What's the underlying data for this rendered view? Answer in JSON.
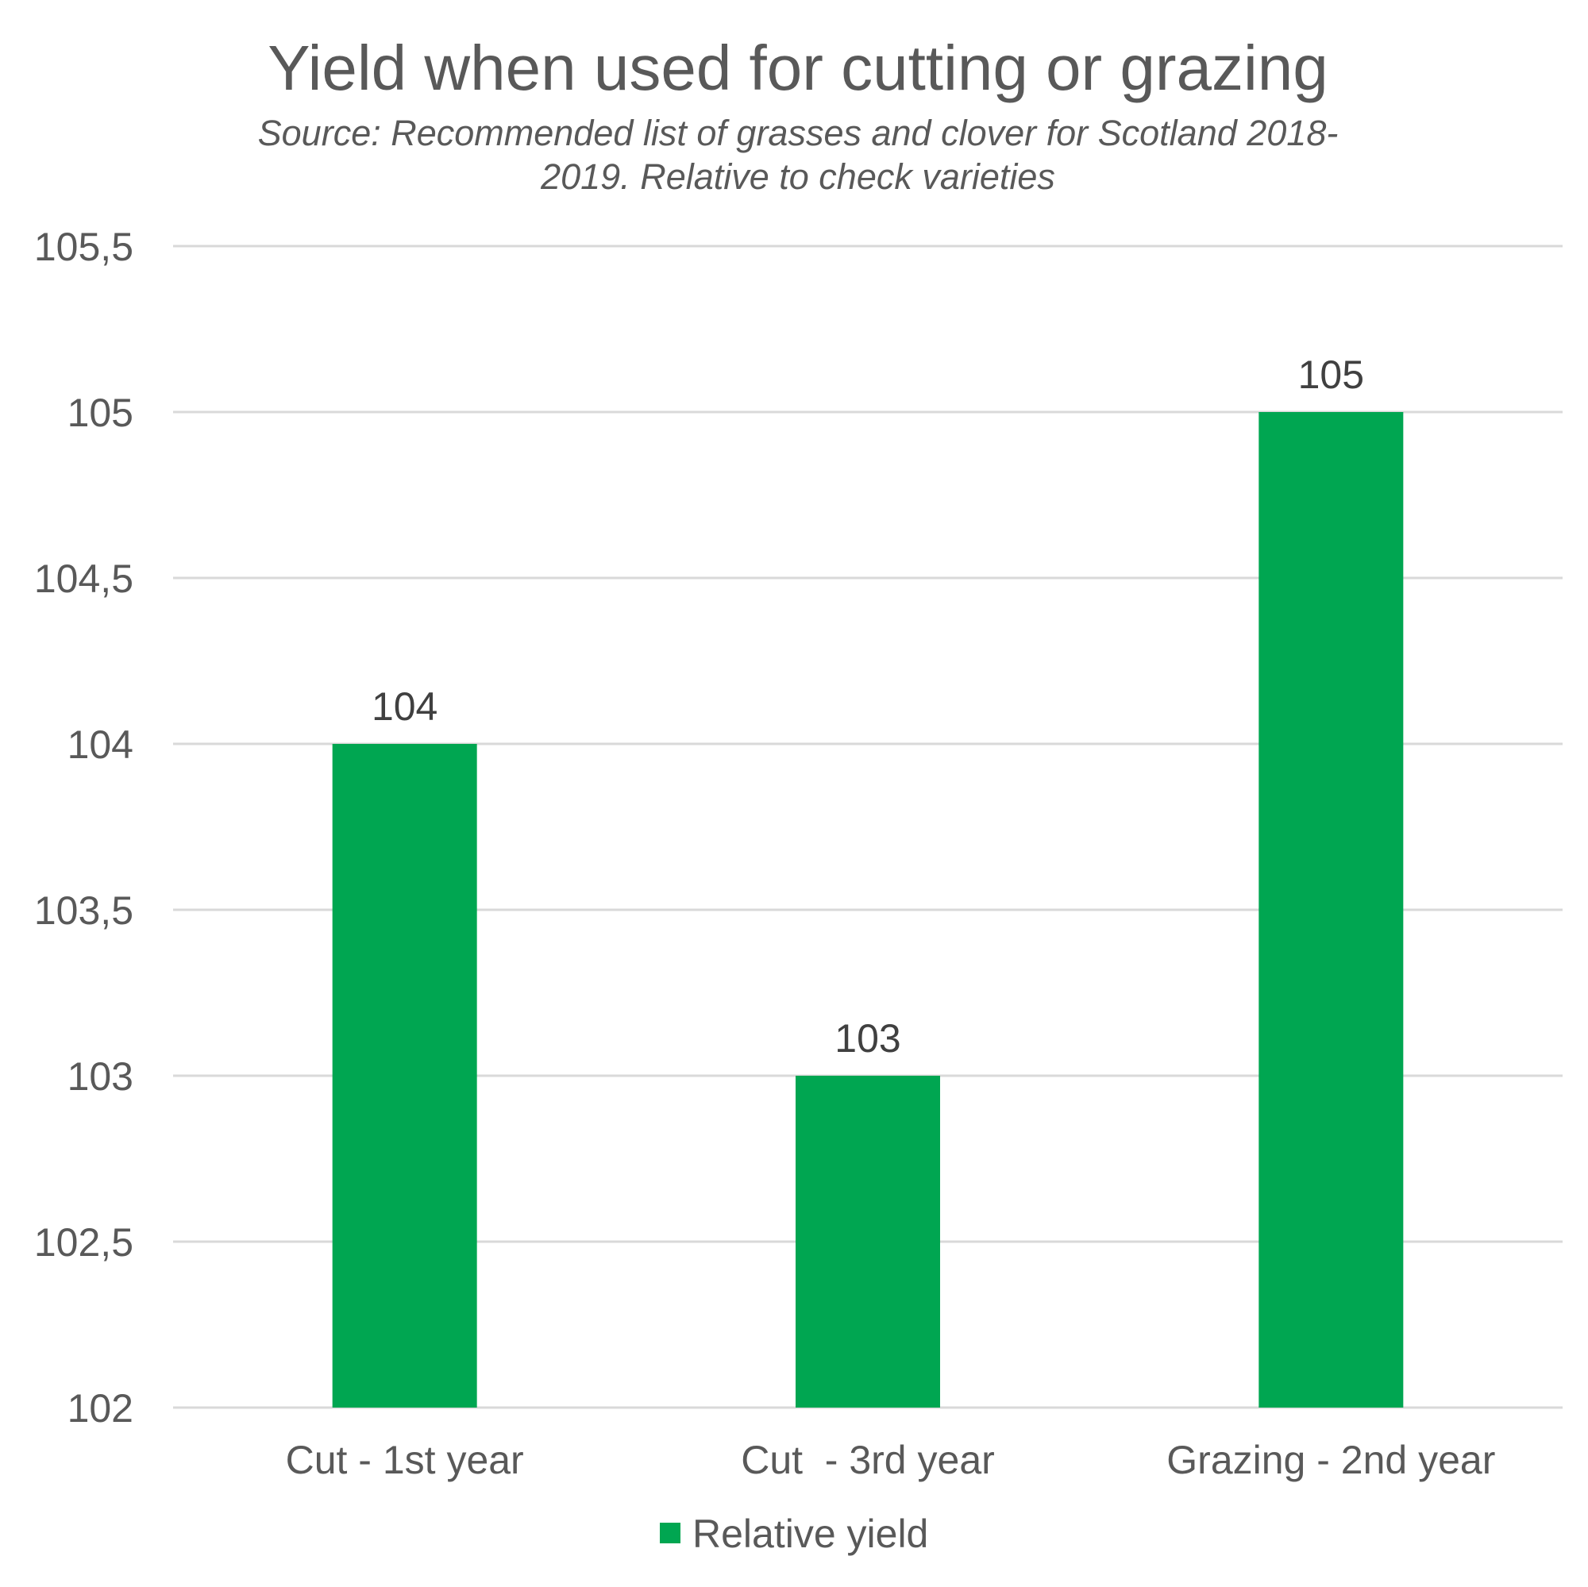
{
  "chart_data": {
    "type": "bar",
    "title": "Yield when used for cutting or grazing",
    "subtitle": [
      "Source: Recommended list of grasses and clover for Scotland 2018-",
      "2019. Relative to check varieties"
    ],
    "categories": [
      "Cut - 1st year",
      "Cut  - 3rd year",
      "Grazing - 2nd year"
    ],
    "series": [
      {
        "name": "Relative yield",
        "values": [
          104,
          103,
          105
        ],
        "color": "#00a651"
      }
    ],
    "data_labels": [
      "104",
      "103",
      "105"
    ],
    "ylim": [
      102,
      105.5
    ],
    "yticks": [
      102,
      102.5,
      103,
      103.5,
      104,
      104.5,
      105,
      105.5
    ],
    "ytick_labels": [
      "102",
      "102,5",
      "103",
      "103,5",
      "104",
      "104,5",
      "105",
      "105,5"
    ],
    "xlabel": "",
    "ylabel": "",
    "grid": true,
    "legend": "bottom"
  }
}
